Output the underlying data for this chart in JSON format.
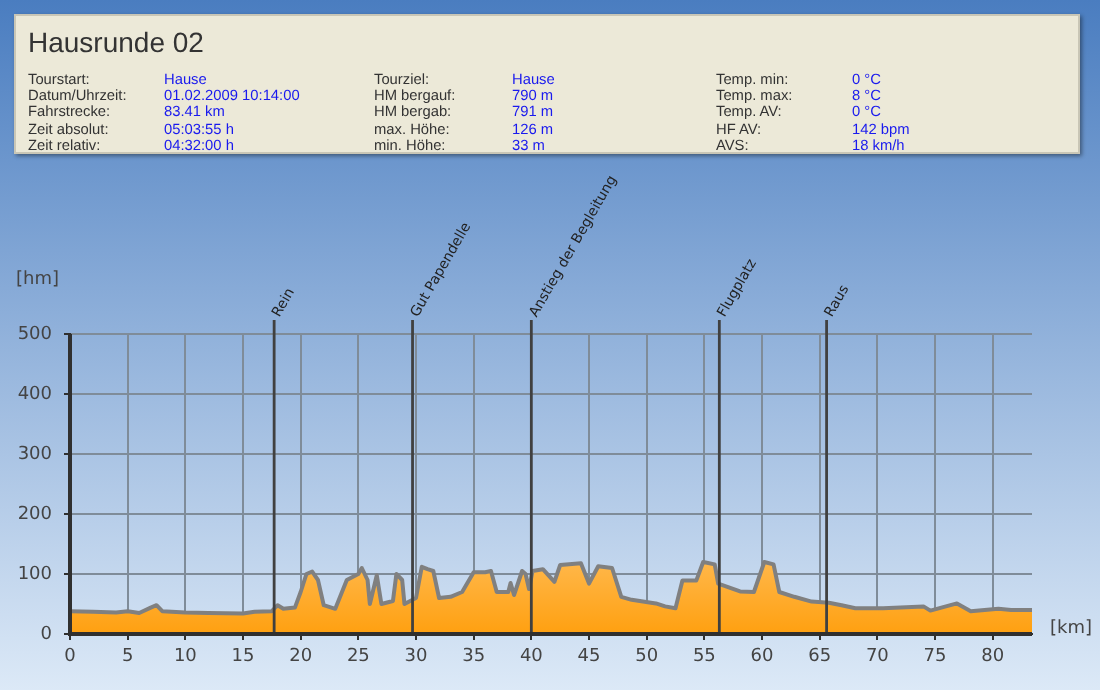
{
  "chart_data": {
    "type": "area",
    "title": "Hausrunde 02",
    "annotations": [
      "Tourstart:",
      "Hause",
      "Tourziel:",
      "Hause",
      "Temp. min:",
      "0 °C",
      "Datum/Uhrzeit:",
      "01.02.2009 10:14:00",
      "HM bergauf:",
      "790 m",
      "Temp. max:",
      "8 °C",
      "Fahrstrecke:",
      "83.41 km",
      "HM bergab:",
      "791 m",
      "Temp. AV:",
      "0 °C",
      "Zeit absolut:",
      "05:03:55 h",
      "max. Höhe:",
      "126 m",
      "HF AV:",
      "142 bpm",
      "Zeit relativ:",
      "04:32:00 h",
      "min. Höhe:",
      "33 m",
      "AVS:",
      "18 km/h"
    ],
    "xlabel": "[km]",
    "ylabel": "[hm]",
    "xlim": [
      0,
      83.41
    ],
    "xticks": [
      0,
      5,
      10,
      15,
      20,
      25,
      30,
      35,
      40,
      45,
      50,
      55,
      60,
      65,
      70,
      75,
      80
    ],
    "ylim": [
      0,
      500
    ],
    "yticks": [
      0,
      100,
      200,
      300,
      400,
      500
    ],
    "grid": true,
    "legend": false,
    "series": [
      {
        "color": "#ffa010",
        "x": [
          0,
          2,
          4,
          5,
          6,
          7,
          7.5,
          8,
          10,
          12,
          15,
          16,
          17.5,
          18,
          18.5,
          19.5,
          20,
          20.5,
          21,
          21.5,
          22,
          23,
          24,
          25,
          25.3,
          25.8,
          26,
          26.6,
          27,
          28,
          28.3,
          28.8,
          29,
          29.5,
          30,
          30.5,
          31,
          31.5,
          32,
          33,
          34,
          35,
          36,
          36.5,
          37,
          38,
          38.2,
          38.5,
          39.2,
          39.5,
          39.8,
          40.1,
          41,
          42,
          42.5,
          44.3,
          45,
          45.8,
          47,
          47.8,
          48.7,
          50.8,
          51.6,
          52.5,
          53.1,
          54.3,
          54.9,
          55.9,
          56.2,
          58.1,
          59.3,
          60.2,
          61,
          61.5,
          62.8,
          64.3,
          65.8,
          66.9,
          68.1,
          70.5,
          74,
          74.6,
          76.9,
          78.1,
          80.5,
          81.6,
          83.41
        ],
        "values": [
          38,
          37,
          36,
          38,
          35,
          44,
          48,
          38,
          36,
          35,
          34,
          37,
          38,
          48,
          42,
          44,
          70,
          100,
          104,
          90,
          48,
          42,
          90,
          100,
          110,
          90,
          50,
          98,
          50,
          55,
          100,
          90,
          50,
          55,
          60,
          112,
          108,
          105,
          60,
          62,
          70,
          103,
          103,
          105,
          70,
          70,
          85,
          65,
          105,
          100,
          75,
          105,
          108,
          87,
          115,
          118,
          84,
          113,
          110,
          62,
          57,
          51,
          46,
          43,
          89,
          89,
          120,
          116,
          84,
          71,
          70,
          120,
          116,
          70,
          62,
          54,
          52,
          48,
          43,
          43,
          46,
          39,
          51,
          38,
          42,
          40,
          40
        ]
      }
    ],
    "ref_lines": [
      {
        "axis": "x",
        "value": 17.7,
        "label": "Rein"
      },
      {
        "axis": "x",
        "value": 29.7,
        "label": "Gut Papendelle"
      },
      {
        "axis": "x",
        "value": 40,
        "label": "Anstieg der Begleitung"
      },
      {
        "axis": "x",
        "value": 56.3,
        "label": "Flugplatz"
      },
      {
        "axis": "x",
        "value": 65.6,
        "label": "Raus"
      }
    ]
  }
}
